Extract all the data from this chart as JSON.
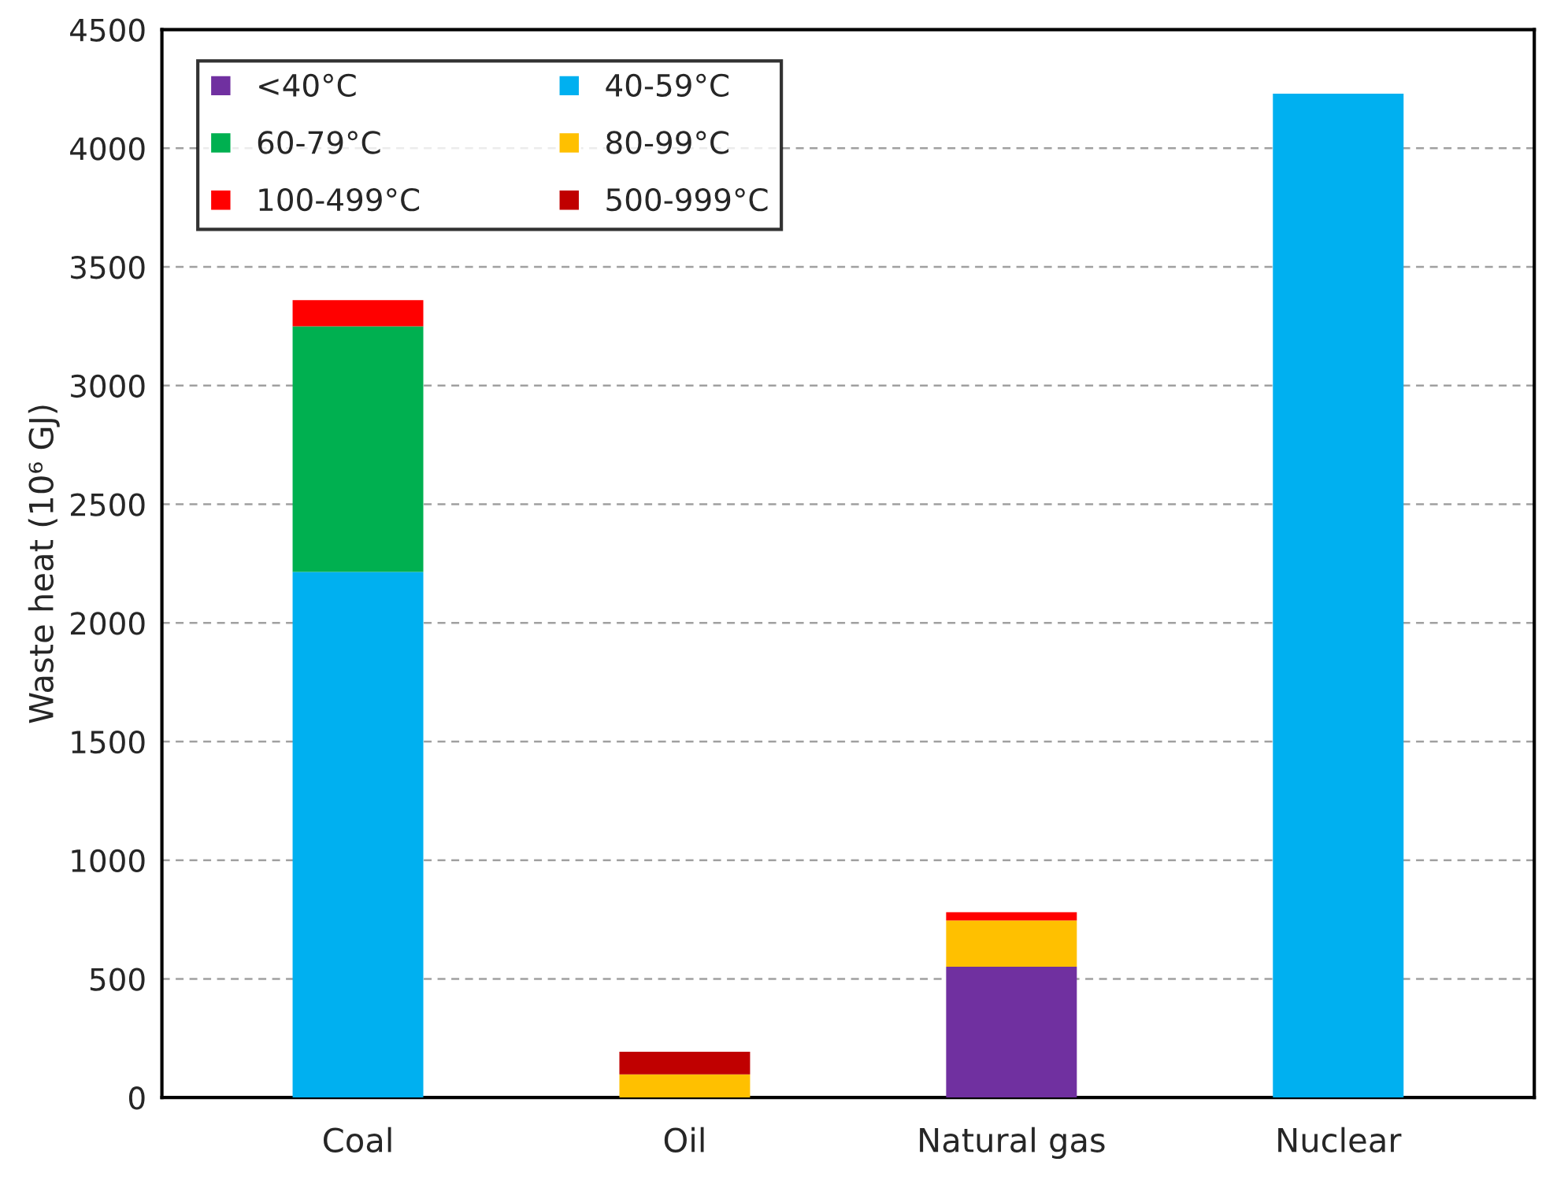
{
  "chart_data": {
    "type": "bar",
    "ylabel": "Waste heat (10⁶ GJ)",
    "stacked": true,
    "categories": [
      "Coal",
      "Oil",
      "Natural gas",
      "Nuclear"
    ],
    "series": [
      {
        "name": "<40°C",
        "color": "#7030a0",
        "values": [
          null,
          null,
          551,
          null
        ]
      },
      {
        "name": "40-59°C",
        "color": "#00b0f0",
        "values": [
          2215,
          null,
          null,
          4230
        ]
      },
      {
        "name": "60-79°C",
        "color": "#00b050",
        "values": [
          1035,
          null,
          null,
          null
        ]
      },
      {
        "name": "80-99°C",
        "color": "#ffc000",
        "values": [
          null,
          98,
          195,
          null
        ]
      },
      {
        "name": "100-499°C",
        "color": "#ff0000",
        "values": [
          110,
          null,
          35,
          null
        ]
      },
      {
        "name": "500-999°C",
        "color": "#c00000",
        "values": [
          null,
          95,
          null,
          null
        ]
      }
    ],
    "ylim": [
      0,
      4500
    ],
    "yticks": [
      0,
      500,
      1000,
      1500,
      2000,
      2500,
      3000,
      3500,
      4000,
      4500
    ],
    "grid": "y",
    "legend": "top left"
  }
}
